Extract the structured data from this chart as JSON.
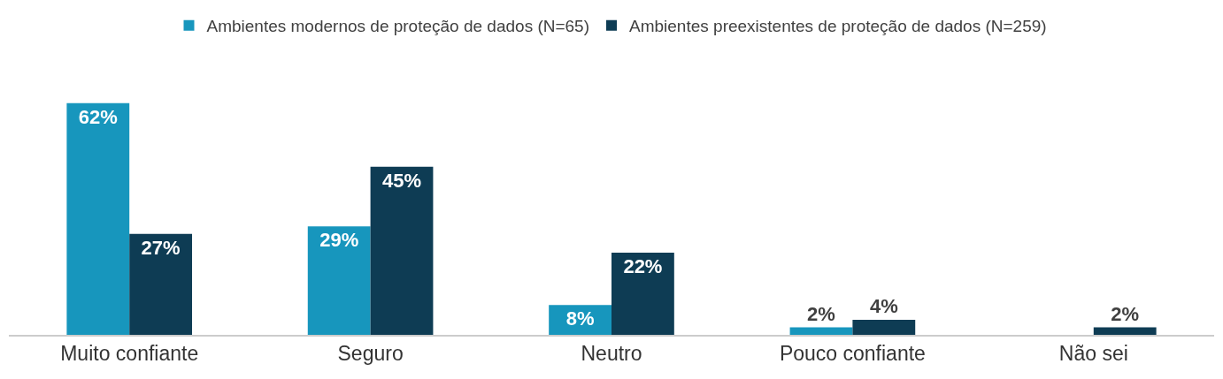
{
  "chart_data": {
    "type": "bar",
    "categories": [
      "Muito confiante",
      "Seguro",
      "Neutro",
      "Pouco confiante",
      "Não sei"
    ],
    "series": [
      {
        "name": "Ambientes modernos de proteção de dados (N=65)",
        "color": "#1796bd",
        "values": [
          62,
          29,
          8,
          2,
          null
        ],
        "value_labels": [
          "62%",
          "29%",
          "8%",
          "2%",
          null
        ]
      },
      {
        "name": "Ambientes preexistentes de proteção de dados (N=259)",
        "color": "#0e3c54",
        "values": [
          27,
          45,
          22,
          4,
          2
        ],
        "value_labels": [
          "27%",
          "45%",
          "22%",
          "4%",
          "2%"
        ]
      }
    ],
    "tick_labels": "x",
    "legend": "top"
  }
}
